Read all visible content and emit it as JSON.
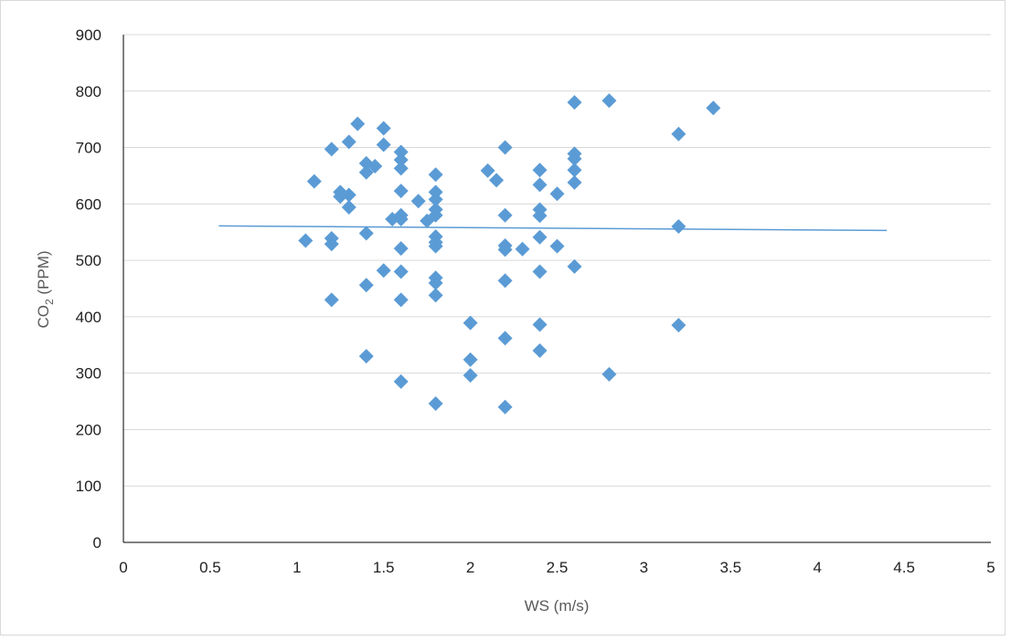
{
  "colors": {
    "marker": "#5b9bd5",
    "trendline": "#5b9bd5",
    "gridline": "#d9d9d9",
    "axis": "#000000",
    "axis_title": "#595959"
  },
  "chart_data": {
    "type": "scatter",
    "title": "",
    "xlabel": "WS (m/s)",
    "ylabel": {
      "main": "CO",
      "subscript": "2",
      "unit": " (PPM)"
    },
    "xlim": [
      0,
      5
    ],
    "ylim": [
      0,
      900
    ],
    "x_ticks": [
      0,
      0.5,
      1,
      1.5,
      2,
      2.5,
      3,
      3.5,
      4,
      4.5,
      5
    ],
    "x_tick_labels": [
      "0",
      "0.5",
      "1",
      "1.5",
      "2",
      "2.5",
      "3",
      "3.5",
      "4",
      "4.5",
      "5"
    ],
    "y_ticks": [
      0,
      100,
      200,
      300,
      400,
      500,
      600,
      700,
      800,
      900
    ],
    "y_tick_labels": [
      "0",
      "100",
      "200",
      "300",
      "400",
      "500",
      "600",
      "700",
      "800",
      "900"
    ],
    "grid": "horizontal",
    "legend": "none",
    "marker": "diamond",
    "trendline": {
      "type": "linear",
      "x": [
        0.55,
        4.4
      ],
      "y": [
        561,
        553
      ]
    },
    "points": [
      {
        "x": 1.05,
        "y": 535
      },
      {
        "x": 1.1,
        "y": 640
      },
      {
        "x": 1.2,
        "y": 697
      },
      {
        "x": 1.2,
        "y": 539
      },
      {
        "x": 1.2,
        "y": 529
      },
      {
        "x": 1.2,
        "y": 430
      },
      {
        "x": 1.25,
        "y": 621
      },
      {
        "x": 1.25,
        "y": 613
      },
      {
        "x": 1.3,
        "y": 710
      },
      {
        "x": 1.3,
        "y": 616
      },
      {
        "x": 1.3,
        "y": 594
      },
      {
        "x": 1.35,
        "y": 742
      },
      {
        "x": 1.4,
        "y": 672
      },
      {
        "x": 1.4,
        "y": 656
      },
      {
        "x": 1.4,
        "y": 548
      },
      {
        "x": 1.4,
        "y": 456
      },
      {
        "x": 1.4,
        "y": 330
      },
      {
        "x": 1.45,
        "y": 667
      },
      {
        "x": 1.5,
        "y": 734
      },
      {
        "x": 1.5,
        "y": 705
      },
      {
        "x": 1.5,
        "y": 482
      },
      {
        "x": 1.55,
        "y": 573
      },
      {
        "x": 1.6,
        "y": 692
      },
      {
        "x": 1.6,
        "y": 678
      },
      {
        "x": 1.6,
        "y": 663
      },
      {
        "x": 1.6,
        "y": 623
      },
      {
        "x": 1.6,
        "y": 580
      },
      {
        "x": 1.6,
        "y": 573
      },
      {
        "x": 1.6,
        "y": 521
      },
      {
        "x": 1.6,
        "y": 480
      },
      {
        "x": 1.6,
        "y": 430
      },
      {
        "x": 1.6,
        "y": 285
      },
      {
        "x": 1.7,
        "y": 605
      },
      {
        "x": 1.75,
        "y": 570
      },
      {
        "x": 1.8,
        "y": 652
      },
      {
        "x": 1.8,
        "y": 621
      },
      {
        "x": 1.8,
        "y": 608
      },
      {
        "x": 1.8,
        "y": 590
      },
      {
        "x": 1.8,
        "y": 580
      },
      {
        "x": 1.8,
        "y": 542
      },
      {
        "x": 1.8,
        "y": 532
      },
      {
        "x": 1.8,
        "y": 525
      },
      {
        "x": 1.8,
        "y": 469
      },
      {
        "x": 1.8,
        "y": 460
      },
      {
        "x": 1.8,
        "y": 438
      },
      {
        "x": 1.8,
        "y": 246
      },
      {
        "x": 2.0,
        "y": 389
      },
      {
        "x": 2.0,
        "y": 324
      },
      {
        "x": 2.0,
        "y": 296
      },
      {
        "x": 2.1,
        "y": 659
      },
      {
        "x": 2.15,
        "y": 642
      },
      {
        "x": 2.2,
        "y": 700
      },
      {
        "x": 2.2,
        "y": 580
      },
      {
        "x": 2.2,
        "y": 526
      },
      {
        "x": 2.2,
        "y": 519
      },
      {
        "x": 2.2,
        "y": 464
      },
      {
        "x": 2.2,
        "y": 362
      },
      {
        "x": 2.2,
        "y": 240
      },
      {
        "x": 2.3,
        "y": 520
      },
      {
        "x": 2.4,
        "y": 660
      },
      {
        "x": 2.4,
        "y": 634
      },
      {
        "x": 2.4,
        "y": 590
      },
      {
        "x": 2.4,
        "y": 579
      },
      {
        "x": 2.4,
        "y": 541
      },
      {
        "x": 2.4,
        "y": 480
      },
      {
        "x": 2.4,
        "y": 386
      },
      {
        "x": 2.4,
        "y": 340
      },
      {
        "x": 2.5,
        "y": 618
      },
      {
        "x": 2.5,
        "y": 525
      },
      {
        "x": 2.6,
        "y": 780
      },
      {
        "x": 2.6,
        "y": 689
      },
      {
        "x": 2.6,
        "y": 680
      },
      {
        "x": 2.6,
        "y": 660
      },
      {
        "x": 2.6,
        "y": 638
      },
      {
        "x": 2.6,
        "y": 489
      },
      {
        "x": 2.8,
        "y": 783
      },
      {
        "x": 2.8,
        "y": 298
      },
      {
        "x": 3.2,
        "y": 724
      },
      {
        "x": 3.2,
        "y": 560
      },
      {
        "x": 3.2,
        "y": 385
      },
      {
        "x": 3.4,
        "y": 770
      }
    ]
  }
}
